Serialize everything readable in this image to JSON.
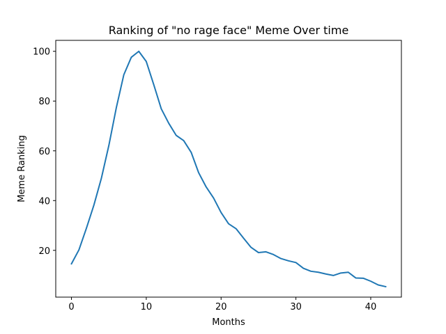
{
  "chart_data": {
    "type": "line",
    "title": "Ranking of \"no rage face\" Meme Over time",
    "xlabel": "Months",
    "ylabel": "Meme Ranking",
    "xlim": [
      -2.1,
      44.1
    ],
    "ylim": [
      1.2,
      104.4
    ],
    "xticks": [
      0,
      10,
      20,
      30,
      40
    ],
    "yticks": [
      20,
      40,
      60,
      80,
      100
    ],
    "grid": false,
    "legend": "none",
    "line_color": "#1f77b4",
    "series": [
      {
        "x": [
          0,
          1,
          2,
          3,
          4,
          5,
          6,
          7,
          8,
          9,
          10,
          11,
          12,
          13,
          14,
          15,
          16,
          17,
          18,
          19,
          20,
          21,
          22,
          23,
          24,
          25,
          26,
          27,
          28,
          29,
          30,
          31,
          32,
          33,
          34,
          35,
          36,
          37,
          38,
          39,
          40,
          41,
          42
        ],
        "values": [
          14.6,
          20.2,
          28.9,
          38.2,
          49,
          62.2,
          77.4,
          90.6,
          97.6,
          100,
          95.9,
          86.6,
          76.9,
          71.1,
          66.2,
          64.1,
          59.4,
          51.2,
          45.5,
          41,
          35.2,
          30.7,
          28.7,
          24.9,
          21.2,
          19.1,
          19.4,
          18.3,
          16.7,
          15.8,
          15.1,
          12.8,
          11.6,
          11.2,
          10.5,
          9.9,
          10.9,
          11.2,
          8.9,
          8.8,
          7.6,
          6.1,
          5.4
        ]
      }
    ]
  }
}
